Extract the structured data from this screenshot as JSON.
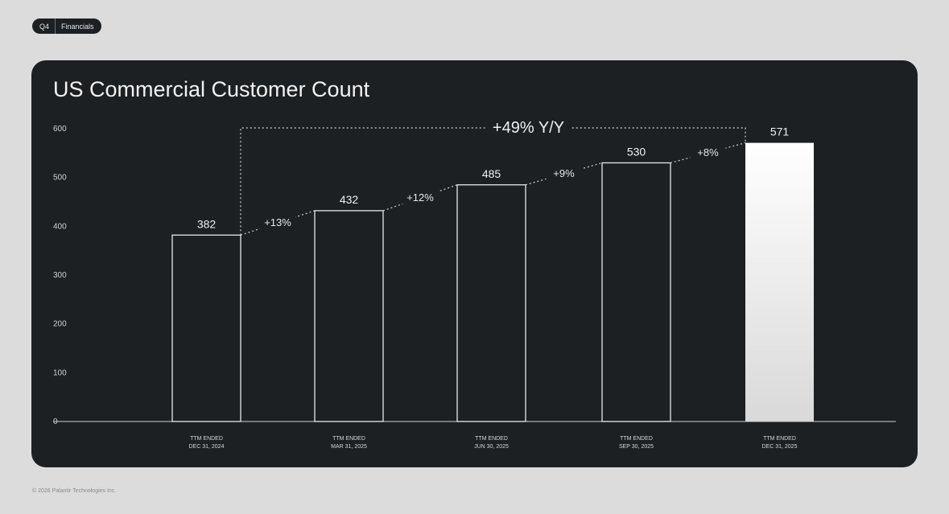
{
  "header": {
    "quarter": "Q4",
    "section": "Financials"
  },
  "footer": {
    "copyright": "© 2026 Palantir Technologies Inc."
  },
  "colors": {
    "panel": "#1d2023",
    "outline": "#e8e8e8",
    "highlight_top": "#ffffff",
    "highlight_bottom": "#d9d9d9"
  },
  "chart_data": {
    "type": "bar",
    "title": "US Commercial Customer Count",
    "xlabel": "",
    "ylabel": "",
    "ylim": [
      0,
      600
    ],
    "yticks": [
      "0",
      "100",
      "200",
      "300",
      "400",
      "500",
      "600"
    ],
    "categories": [
      [
        "TTM ENDED",
        "DEC 31, 2024"
      ],
      [
        "TTM ENDED",
        "MAR 31, 2025"
      ],
      [
        "TTM ENDED",
        "JUN 30, 2025"
      ],
      [
        "TTM ENDED",
        "SEP 30, 2025"
      ],
      [
        "TTM ENDED",
        "DEC 31, 2025"
      ]
    ],
    "values": [
      382,
      432,
      485,
      530,
      571
    ],
    "value_labels": [
      "382",
      "432",
      "485",
      "530",
      "571"
    ],
    "growth_labels": [
      "+13%",
      "+12%",
      "+9%",
      "+8%"
    ],
    "yoy_label": "+49% Y/Y",
    "highlight_index": 4,
    "grid": false
  }
}
